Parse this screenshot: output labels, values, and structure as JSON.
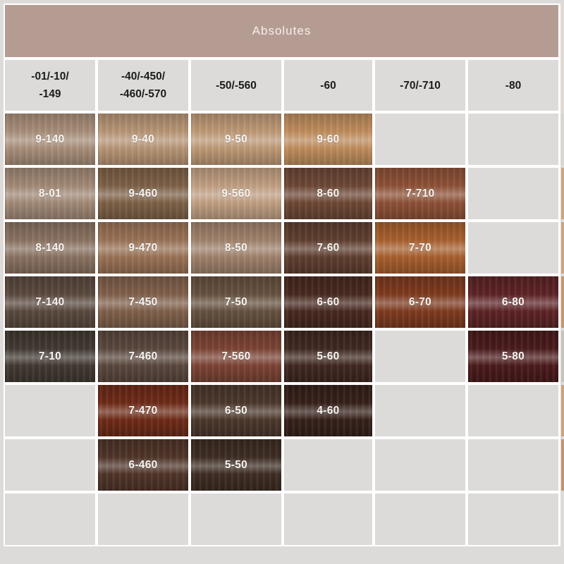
{
  "chart_data": {
    "type": "table",
    "title": "Absolutes",
    "columns": [
      "-01/-10/-149",
      "-40/-450/-460/-570",
      "-50/-560",
      "-60",
      "-70/-710",
      "-80"
    ],
    "rows": [
      [
        "9-140",
        "9-40",
        "9-50",
        "9-60",
        "",
        ""
      ],
      [
        "8-01",
        "9-460",
        "9-560",
        "8-60",
        "7-710",
        ""
      ],
      [
        "8-140",
        "9-470",
        "8-50",
        "7-60",
        "7-70",
        ""
      ],
      [
        "7-140",
        "7-450",
        "7-50",
        "6-60",
        "6-70",
        "6-80"
      ],
      [
        "7-10",
        "7-460",
        "7-560",
        "5-60",
        "",
        "5-80"
      ],
      [
        "",
        "7-470",
        "6-50",
        "4-60",
        "",
        ""
      ],
      [
        "",
        "6-460",
        "5-50",
        "",
        "",
        ""
      ],
      [
        "",
        "",
        "",
        "",
        "",
        ""
      ]
    ]
  },
  "banner": {
    "title": "Absolutes",
    "color": "#b59c93"
  },
  "headers": [
    {
      "line1": "-01/-10/",
      "line2": "-149"
    },
    {
      "line1": "-40/-450/",
      "line2": "-460/-570"
    },
    {
      "line1": "-50/-560",
      "line2": ""
    },
    {
      "line1": "-60",
      "line2": ""
    },
    {
      "line1": "-70/-710",
      "line2": ""
    },
    {
      "line1": "-80",
      "line2": ""
    }
  ],
  "rows": [
    [
      {
        "label": "9-140",
        "color": "#a98f7a"
      },
      {
        "label": "9-40",
        "color": "#b89676"
      },
      {
        "label": "9-50",
        "color": "#bf9a76"
      },
      {
        "label": "9-60",
        "color": "#c08d5d"
      },
      {
        "label": "",
        "color": ""
      },
      {
        "label": "",
        "color": ""
      }
    ],
    [
      {
        "label": "8-01",
        "color": "#a38a77"
      },
      {
        "label": "9-460",
        "color": "#7e6147"
      },
      {
        "label": "9-560",
        "color": "#c2a083"
      },
      {
        "label": "8-60",
        "color": "#6d4735"
      },
      {
        "label": "7-710",
        "color": "#8e5136"
      },
      {
        "label": "",
        "color": ""
      }
    ],
    [
      {
        "label": "8-140",
        "color": "#8a7261"
      },
      {
        "label": "9-470",
        "color": "#9a7256"
      },
      {
        "label": "8-50",
        "color": "#a0826b"
      },
      {
        "label": "7-60",
        "color": "#5f3e2f"
      },
      {
        "label": "7-70",
        "color": "#a85f2d"
      },
      {
        "label": "",
        "color": ""
      }
    ],
    [
      {
        "label": "7-140",
        "color": "#5a493e"
      },
      {
        "label": "7-450",
        "color": "#80604b"
      },
      {
        "label": "7-50",
        "color": "#66513f"
      },
      {
        "label": "6-60",
        "color": "#47291f"
      },
      {
        "label": "6-70",
        "color": "#7e3a1e"
      },
      {
        "label": "6-80",
        "color": "#5d2325"
      }
    ],
    [
      {
        "label": "7-10",
        "color": "#413931"
      },
      {
        "label": "7-460",
        "color": "#5a473d"
      },
      {
        "label": "7-560",
        "color": "#7b4334"
      },
      {
        "label": "5-60",
        "color": "#3f2720"
      },
      {
        "label": "",
        "color": ""
      },
      {
        "label": "5-80",
        "color": "#4a1a1b"
      }
    ],
    [
      {
        "label": "",
        "color": ""
      },
      {
        "label": "7-470",
        "color": "#6e2a17"
      },
      {
        "label": "6-50",
        "color": "#4b372b"
      },
      {
        "label": "4-60",
        "color": "#352019"
      },
      {
        "label": "",
        "color": ""
      },
      {
        "label": "",
        "color": ""
      }
    ],
    [
      {
        "label": "",
        "color": ""
      },
      {
        "label": "6-460",
        "color": "#4f3428"
      },
      {
        "label": "5-50",
        "color": "#3d2c22"
      },
      {
        "label": "",
        "color": ""
      },
      {
        "label": "",
        "color": ""
      },
      {
        "label": "",
        "color": ""
      }
    ],
    [
      {
        "label": "",
        "color": ""
      },
      {
        "label": "",
        "color": ""
      },
      {
        "label": "",
        "color": ""
      },
      {
        "label": "",
        "color": ""
      },
      {
        "label": "",
        "color": ""
      },
      {
        "label": "",
        "color": ""
      }
    ]
  ],
  "edge_column_colors": [
    "#e0d9d4",
    "#d8d6d3",
    "#cfa57a",
    "#cfa47b",
    "#c8976a",
    "#c5c4bf",
    "#d0a27a",
    "#c6946a",
    "#dcdbd9",
    "#dcdbd9"
  ]
}
